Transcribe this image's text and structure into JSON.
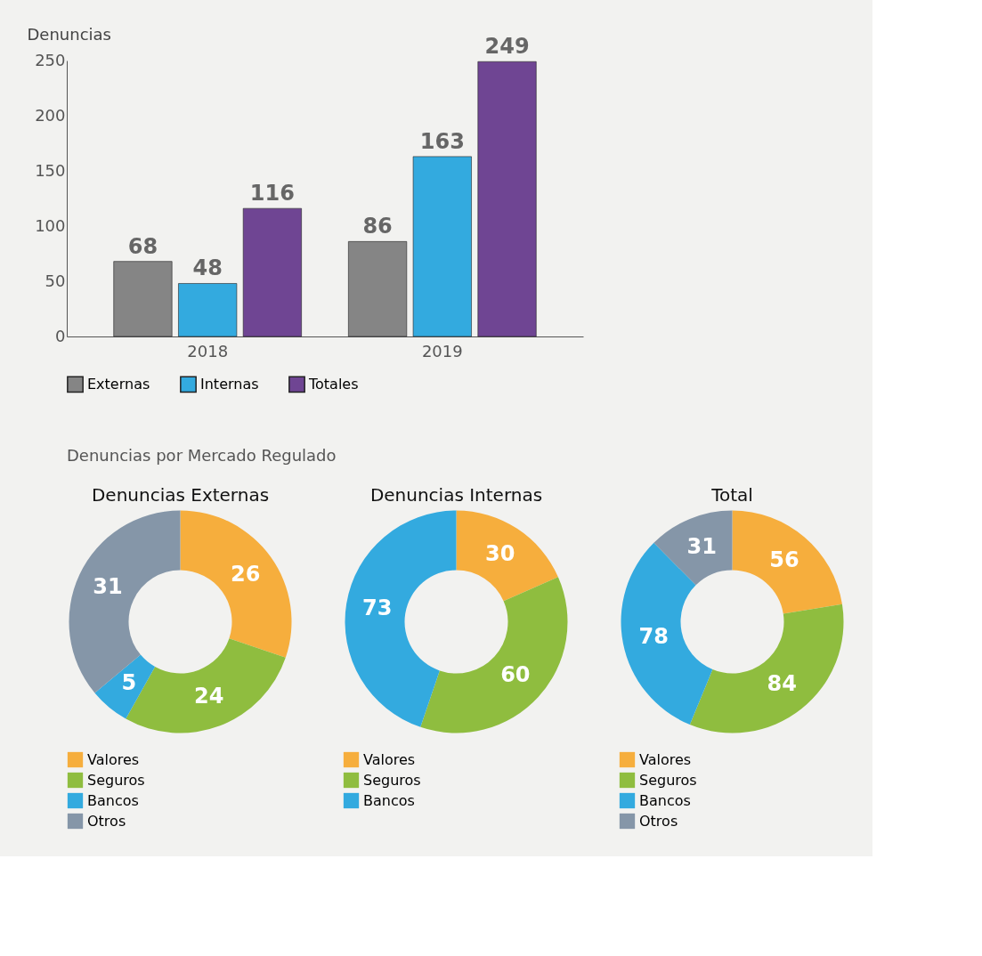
{
  "chart_data": [
    {
      "type": "bar",
      "ylabel": "Denuncias",
      "categories": [
        "2018",
        "2019"
      ],
      "series": [
        {
          "name": "Externas",
          "color": "#858585",
          "values": [
            68,
            86
          ]
        },
        {
          "name": "Internas",
          "color": "#33aadf",
          "values": [
            48,
            163
          ]
        },
        {
          "name": "Totales",
          "color": "#6f4593",
          "values": [
            116,
            249
          ]
        }
      ],
      "ylim": [
        0,
        250
      ],
      "yticks": [
        0,
        50,
        100,
        150,
        200,
        250
      ],
      "grid": false,
      "data_labels": true,
      "legend": "bottom"
    },
    {
      "type": "donut",
      "title": "Denuncias Externas",
      "annotations": [
        "Denuncias por Mercado Regulado"
      ],
      "categories": [
        "Valores",
        "Seguros",
        "Bancos",
        "Otros"
      ],
      "values": [
        26,
        24,
        5,
        31
      ],
      "colors": [
        "#f6ae3d",
        "#8fbd3f",
        "#33aadf",
        "#8596a8"
      ],
      "data_labels": true,
      "legend": "bottom"
    },
    {
      "type": "donut",
      "title": "Denuncias Internas",
      "categories": [
        "Valores",
        "Seguros",
        "Bancos"
      ],
      "values": [
        30,
        60,
        73
      ],
      "colors": [
        "#f6ae3d",
        "#8fbd3f",
        "#33aadf"
      ],
      "data_labels": true,
      "legend": "bottom"
    },
    {
      "type": "donut",
      "title": "Total",
      "categories": [
        "Valores",
        "Seguros",
        "Bancos",
        "Otros"
      ],
      "values": [
        56,
        84,
        78,
        31
      ],
      "colors": [
        "#f6ae3d",
        "#8fbd3f",
        "#33aadf",
        "#8596a8"
      ],
      "data_labels": true,
      "legend": "bottom"
    }
  ]
}
